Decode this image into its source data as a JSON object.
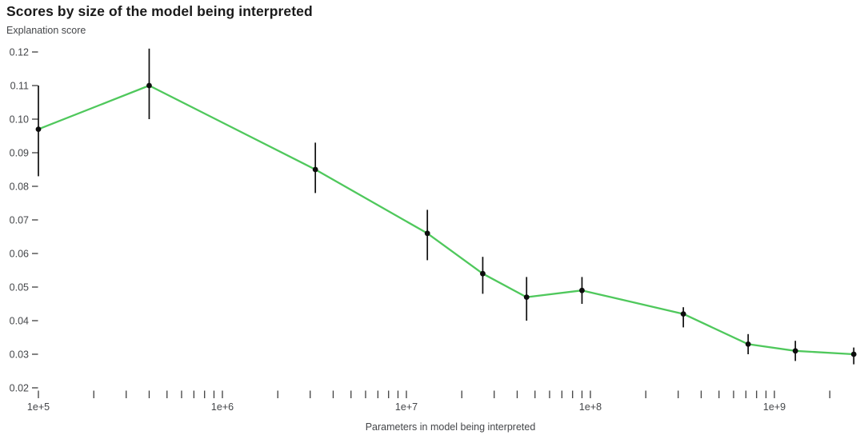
{
  "chart_data": {
    "type": "line",
    "title": "Scores by size of the model being interpreted",
    "ylabel": "Explanation score",
    "xlabel": "Parameters in model being interpreted",
    "grid": false,
    "legend": "none",
    "colors": {
      "line": "#4fc85c",
      "marker": "#0d0d0d",
      "error_bar": "#0d0d0d",
      "tick_text": "#444649",
      "tick_mark": "#3f3f3f",
      "title_text": "#1a1a1a",
      "background": "#ffffff"
    },
    "x_axis": {
      "scale": "log",
      "min": 100000.0,
      "max": 2900000000.0,
      "major_ticks": [
        {
          "value": 100000.0,
          "label": "1e+5"
        },
        {
          "value": 1000000.0,
          "label": "1e+6"
        },
        {
          "value": 10000000.0,
          "label": "1e+7"
        },
        {
          "value": 100000000.0,
          "label": "1e+8"
        },
        {
          "value": 1000000000.0,
          "label": "1e+9"
        }
      ]
    },
    "y_axis": {
      "min": 0.02,
      "max": 0.12,
      "ticks": [
        {
          "value": 0.12,
          "label": "0.12"
        },
        {
          "value": 0.11,
          "label": "0.11"
        },
        {
          "value": 0.1,
          "label": "0.10"
        },
        {
          "value": 0.09,
          "label": "0.09"
        },
        {
          "value": 0.08,
          "label": "0.08"
        },
        {
          "value": 0.07,
          "label": "0.07"
        },
        {
          "value": 0.06,
          "label": "0.06"
        },
        {
          "value": 0.05,
          "label": "0.05"
        },
        {
          "value": 0.04,
          "label": "0.04"
        },
        {
          "value": 0.03,
          "label": "0.03"
        },
        {
          "value": 0.02,
          "label": "0.02"
        }
      ]
    },
    "series": [
      {
        "name": "explanation-score-by-model-size",
        "x": [
          100000.0,
          400000.0,
          3200000.0,
          13000000.0,
          26000000.0,
          45000000.0,
          90000000.0,
          320000000.0,
          720000000.0,
          1300000000.0,
          2700000000.0
        ],
        "y": [
          0.097,
          0.11,
          0.085,
          0.066,
          0.054,
          0.047,
          0.049,
          0.042,
          0.033,
          0.031,
          0.03
        ],
        "y_err_low": [
          0.083,
          0.1,
          0.078,
          0.058,
          0.048,
          0.04,
          0.045,
          0.038,
          0.03,
          0.028,
          0.027
        ],
        "y_err_high": [
          0.11,
          0.121,
          0.093,
          0.073,
          0.059,
          0.053,
          0.053,
          0.044,
          0.036,
          0.034,
          0.032
        ]
      }
    ]
  }
}
